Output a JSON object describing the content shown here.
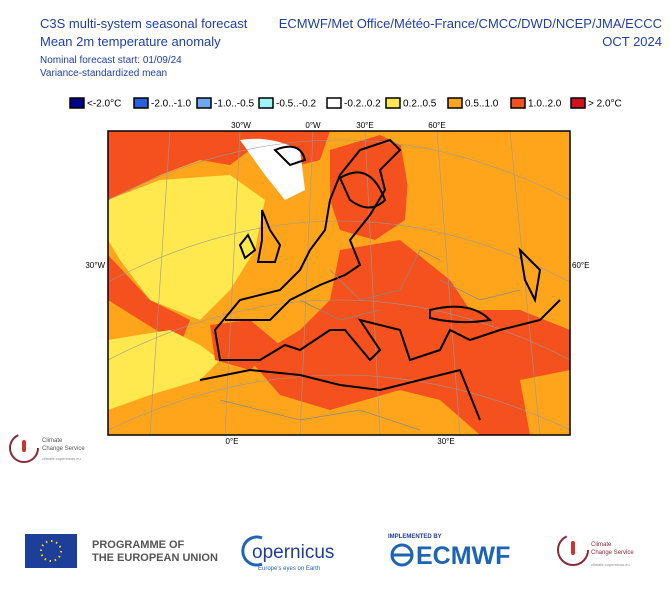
{
  "header": {
    "title_lines": [
      "C3S multi-system seasonal forecast",
      "Mean 2m temperature anomaly"
    ],
    "subtitle_lines": [
      "Nominal forecast start: 01/09/24",
      "Variance-standardized mean"
    ],
    "systems": "ECMWF/Met Office/Météo-France/CMCC/DWD/NCEP/JMA/ECCC",
    "period": "OCT 2024"
  },
  "legend": [
    {
      "label": "<-2.0°C",
      "color": "#00008b"
    },
    {
      "label": "-2.0..-1.0",
      "color": "#2c5fdc"
    },
    {
      "label": "-1.0..-0.5",
      "color": "#6ea6f0"
    },
    {
      "label": "-0.5..-0.2",
      "color": "#9ff5f5"
    },
    {
      "label": "-0.2..0.2",
      "color": "#ffffff"
    },
    {
      "label": "0.2..0.5",
      "color": "#ffe94f"
    },
    {
      "label": "0.5..1.0",
      "color": "#ffa51c"
    },
    {
      "label": "1.0..2.0",
      "color": "#f5511e"
    },
    {
      "label": "> 2.0°C",
      "color": "#d01020"
    }
  ],
  "map": {
    "graticule_labels": {
      "top": [
        "30°W",
        "0°W",
        "30°E",
        "60°E"
      ],
      "left": "30°W",
      "right": "60°E",
      "bottom": [
        "0°E",
        "30°E"
      ]
    }
  },
  "footer": {
    "small_logo": [
      "Climate",
      "Change Service",
      "climate.copernicus.eu"
    ],
    "programme": [
      "PROGRAMME OF",
      "THE EUROPEAN UNION"
    ],
    "copernicus": [
      "opernicus",
      "Europe's eyes on Earth"
    ],
    "implemented_by": "IMPLEMENTED BY",
    "ecmwf": "ECMWF",
    "c3s_logo": [
      "Climate",
      "Change Service",
      "climate.copernicus.eu"
    ]
  }
}
